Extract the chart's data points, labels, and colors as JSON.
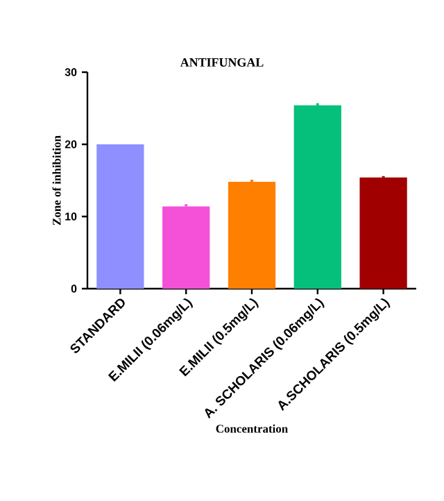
{
  "chart_data": {
    "type": "bar",
    "title": "ANTIFUNGAL",
    "xlabel": "Concentration",
    "ylabel": "Zone of inhibition",
    "categories": [
      "STANDARD",
      "E.MILII (0.06mg/L)",
      "E.MILII (0.5mg/L)",
      "A. SCHOLARIS (0.06mg/L)",
      "A.SCHOLARIS (0.5mg/L)"
    ],
    "values": [
      20,
      11.4,
      14.8,
      25.4,
      15.4
    ],
    "errors": [
      null,
      0.3,
      0.3,
      0.3,
      0.2
    ],
    "colors": [
      "#8f8fff",
      "#f550d8",
      "#ff8000",
      "#05c07a",
      "#a00000"
    ],
    "ylim": [
      0,
      30
    ],
    "yticks": [
      0,
      10,
      20,
      30
    ],
    "grid": false
  }
}
